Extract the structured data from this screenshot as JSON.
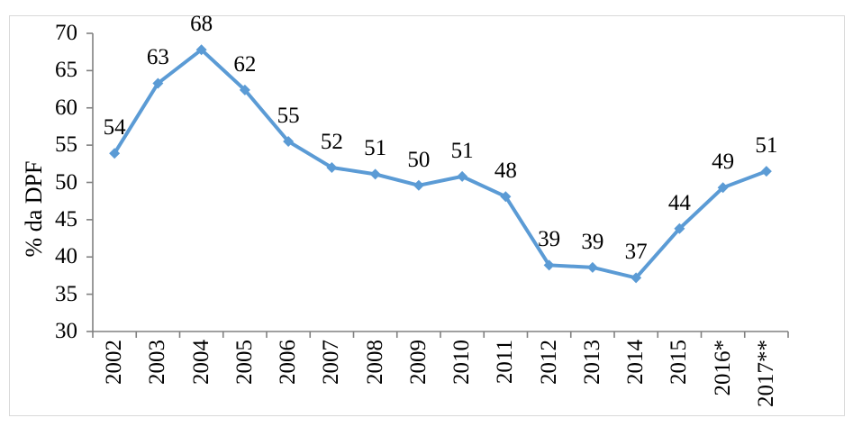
{
  "chart_data": {
    "type": "line",
    "title": "",
    "xlabel": "",
    "ylabel": "% da DPF",
    "categories": [
      "2002",
      "2003",
      "2004",
      "2005",
      "2006",
      "2007",
      "2008",
      "2009",
      "2010",
      "2011",
      "2012",
      "2013",
      "2014",
      "2015",
      "2016*",
      "2017**"
    ],
    "series": [
      {
        "name": "% da DPF",
        "values": [
          54,
          63,
          68,
          62,
          55,
          52,
          51,
          50,
          51,
          48,
          39,
          39,
          37,
          44,
          49,
          51
        ],
        "values_precise": [
          53.9,
          63.3,
          67.8,
          62.4,
          55.5,
          52.0,
          51.1,
          49.6,
          50.8,
          48.1,
          38.9,
          38.6,
          37.2,
          43.8,
          49.3,
          51.5
        ]
      }
    ],
    "ylim": [
      30,
      70
    ],
    "yticks": [
      30,
      35,
      40,
      45,
      50,
      55,
      60,
      65,
      70
    ],
    "grid": false,
    "legend_position": "none",
    "data_labels": "above",
    "colors": {
      "line": "#5b9bd5",
      "marker": "#5b9bd5",
      "axis": "#808080",
      "text": "#000000",
      "frame_border": "#d9d9d9",
      "background": "#ffffff"
    }
  }
}
